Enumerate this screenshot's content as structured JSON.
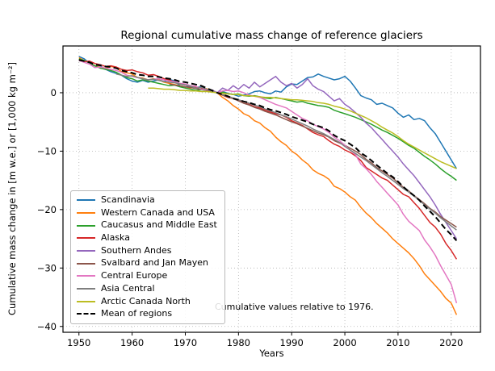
{
  "figure": {
    "background": "#ffffff",
    "frame_color": "#000000",
    "grid_color": "#b0b0b0"
  },
  "chart_data": {
    "type": "line",
    "title": "Regional cumulative mass change of reference glaciers",
    "xlabel": "Years",
    "ylabel": "Cumulative mass change in [m w.e.] or [1,000 kg m⁻²]",
    "annotation": "Cumulative values relative to 1976.",
    "legend_position": "lower-left-inside",
    "grid": true,
    "xlim": [
      1947,
      2025.5
    ],
    "ylim": [
      -41,
      8
    ],
    "x_ticks": [
      1950,
      1960,
      1970,
      1980,
      1990,
      2000,
      2010,
      2020
    ],
    "x_tick_labels": [
      "1950",
      "1960",
      "1970",
      "1980",
      "1990",
      "2000",
      "2010",
      "2020"
    ],
    "y_ticks": [
      0,
      -10,
      -20,
      -30,
      -40
    ],
    "y_tick_labels": [
      "0",
      "−10",
      "−20",
      "−30",
      "−40"
    ],
    "series": [
      {
        "name": "Scandinavia",
        "color": "#1f77b4",
        "dash": false,
        "start_year": 1950,
        "values": [
          6.2,
          5.8,
          5.0,
          4.3,
          4.6,
          4.0,
          3.6,
          3.3,
          3.0,
          2.4,
          2.0,
          1.8,
          2.1,
          1.8,
          2.0,
          2.2,
          1.9,
          2.3,
          2.0,
          1.2,
          1.0,
          1.1,
          0.9,
          1.0,
          0.6,
          0.4,
          0.0,
          0.2,
          -0.1,
          -0.3,
          -0.6,
          -0.4,
          -0.2,
          0.2,
          0.3,
          0.0,
          -0.2,
          0.3,
          0.1,
          1.0,
          1.5,
          1.4,
          2.0,
          2.6,
          2.7,
          3.2,
          2.8,
          2.5,
          2.2,
          2.4,
          2.8,
          2.0,
          0.8,
          -0.5,
          -0.9,
          -1.2,
          -2.0,
          -1.8,
          -2.2,
          -2.6,
          -3.5,
          -4.2,
          -3.8,
          -4.6,
          -4.4,
          -4.8,
          -6.0,
          -7.0,
          -8.5,
          -10.0,
          -11.5,
          -13.0
        ]
      },
      {
        "name": "Western Canada and USA",
        "color": "#ff7f0e",
        "dash": false,
        "start_year": 1950,
        "values": [
          6.0,
          5.5,
          5.2,
          4.6,
          4.4,
          4.2,
          4.5,
          4.3,
          3.6,
          3.4,
          3.2,
          2.6,
          2.5,
          2.2,
          2.4,
          2.2,
          1.8,
          1.6,
          1.4,
          1.2,
          1.0,
          0.8,
          1.0,
          0.6,
          0.7,
          0.3,
          0.0,
          -0.8,
          -1.4,
          -2.2,
          -2.8,
          -3.6,
          -4.0,
          -4.8,
          -5.2,
          -6.0,
          -6.6,
          -7.6,
          -8.4,
          -9.0,
          -10.0,
          -10.6,
          -11.5,
          -12.2,
          -13.2,
          -13.8,
          -14.2,
          -14.8,
          -16.0,
          -16.4,
          -17.0,
          -17.8,
          -18.4,
          -19.6,
          -20.6,
          -21.4,
          -22.4,
          -23.2,
          -24.0,
          -25.0,
          -25.8,
          -26.6,
          -27.4,
          -28.4,
          -29.6,
          -31.0,
          -32.0,
          -33.0,
          -34.0,
          -35.2,
          -36.0,
          -38.0
        ]
      },
      {
        "name": "Caucasus and Middle East",
        "color": "#2ca02c",
        "dash": false,
        "start_year": 1950,
        "values": [
          5.8,
          5.5,
          5.1,
          4.6,
          4.2,
          4.0,
          3.8,
          3.5,
          3.0,
          2.6,
          2.4,
          2.0,
          2.2,
          2.0,
          1.8,
          1.6,
          1.4,
          1.2,
          1.3,
          1.0,
          0.8,
          0.6,
          0.4,
          0.5,
          0.4,
          0.2,
          0.0,
          0.1,
          -0.2,
          -0.3,
          -0.2,
          -0.5,
          -0.6,
          -0.5,
          -0.7,
          -0.9,
          -1.0,
          -0.8,
          -1.0,
          -1.2,
          -1.4,
          -1.6,
          -1.5,
          -1.8,
          -2.0,
          -2.2,
          -2.3,
          -2.5,
          -3.0,
          -3.3,
          -3.6,
          -3.9,
          -4.2,
          -4.6,
          -5.0,
          -5.4,
          -5.9,
          -6.4,
          -6.8,
          -7.3,
          -7.8,
          -8.4,
          -9.0,
          -9.5,
          -10.2,
          -10.9,
          -11.5,
          -12.2,
          -13.0,
          -13.7,
          -14.3,
          -15.0
        ]
      },
      {
        "name": "Alaska",
        "color": "#d62728",
        "dash": false,
        "start_year": 1950,
        "values": [
          5.6,
          5.3,
          5.4,
          5.0,
          4.8,
          4.5,
          4.6,
          4.4,
          4.0,
          3.8,
          3.9,
          3.6,
          3.4,
          3.0,
          3.1,
          2.8,
          2.4,
          2.2,
          1.8,
          1.5,
          1.4,
          1.2,
          1.0,
          0.8,
          0.5,
          0.3,
          0.0,
          -0.4,
          -0.8,
          -1.0,
          -1.3,
          -1.8,
          -2.0,
          -2.4,
          -2.6,
          -3.0,
          -3.3,
          -3.6,
          -3.8,
          -4.2,
          -4.8,
          -5.2,
          -5.6,
          -6.2,
          -6.8,
          -7.2,
          -7.5,
          -8.2,
          -8.8,
          -9.2,
          -9.8,
          -10.2,
          -10.8,
          -11.6,
          -12.8,
          -13.4,
          -14.0,
          -14.6,
          -15.0,
          -15.8,
          -16.6,
          -17.4,
          -17.8,
          -18.8,
          -19.8,
          -21.0,
          -22.2,
          -23.0,
          -24.2,
          -25.8,
          -27.0,
          -28.5
        ]
      },
      {
        "name": "Southern Andes",
        "color": "#9467bd",
        "dash": false,
        "start_year": 1975,
        "values": [
          0.5,
          0.0,
          0.8,
          0.4,
          1.2,
          0.6,
          1.4,
          0.8,
          1.8,
          1.0,
          1.6,
          2.2,
          2.8,
          1.8,
          1.2,
          1.6,
          0.8,
          1.4,
          2.4,
          1.2,
          0.6,
          0.2,
          -0.6,
          -1.4,
          -1.0,
          -2.0,
          -2.6,
          -3.4,
          -4.2,
          -5.2,
          -6.0,
          -7.0,
          -8.0,
          -9.0,
          -10.0,
          -11.0,
          -12.2,
          -13.2,
          -14.2,
          -15.4,
          -16.6,
          -17.8,
          -19.2,
          -20.8,
          -22.2,
          -23.6,
          -25.0
        ]
      },
      {
        "name": "Svalbard and Jan Mayen",
        "color": "#8c564b",
        "dash": false,
        "start_year": 1967,
        "values": [
          1.5,
          1.3,
          1.2,
          1.0,
          0.9,
          0.7,
          0.6,
          0.4,
          0.2,
          0.0,
          -0.4,
          -0.7,
          -1.0,
          -1.4,
          -1.8,
          -2.1,
          -2.5,
          -2.8,
          -3.2,
          -3.5,
          -3.8,
          -4.2,
          -4.6,
          -5.0,
          -5.3,
          -5.7,
          -6.1,
          -6.5,
          -6.9,
          -7.2,
          -7.6,
          -8.2,
          -8.6,
          -9.0,
          -9.5,
          -10.0,
          -10.6,
          -11.4,
          -12.0,
          -12.8,
          -13.4,
          -14.0,
          -14.6,
          -15.4,
          -16.2,
          -16.8,
          -17.6,
          -18.3,
          -19.0,
          -19.8,
          -20.4,
          -21.2,
          -21.8,
          -22.4,
          -23.0
        ]
      },
      {
        "name": "Central Europe",
        "color": "#e377c2",
        "dash": false,
        "start_year": 1950,
        "values": [
          5.5,
          5.2,
          4.9,
          4.3,
          4.4,
          4.2,
          4.0,
          3.8,
          3.5,
          3.0,
          2.8,
          2.6,
          2.4,
          2.2,
          2.3,
          2.4,
          2.2,
          2.0,
          1.9,
          1.6,
          1.5,
          1.2,
          1.1,
          0.6,
          0.5,
          0.4,
          0.0,
          0.3,
          0.4,
          0.2,
          0.3,
          0.0,
          -0.4,
          -0.6,
          -0.8,
          -1.2,
          -1.6,
          -2.0,
          -2.3,
          -2.6,
          -3.2,
          -3.8,
          -4.4,
          -4.8,
          -5.4,
          -5.8,
          -6.2,
          -6.8,
          -7.6,
          -8.2,
          -9.0,
          -9.8,
          -10.6,
          -12.2,
          -13.0,
          -14.0,
          -15.2,
          -16.2,
          -17.2,
          -18.2,
          -19.2,
          -20.8,
          -22.0,
          -22.8,
          -23.6,
          -25.2,
          -26.4,
          -27.8,
          -29.6,
          -31.2,
          -32.8,
          -36.0
        ]
      },
      {
        "name": "Asia Central",
        "color": "#7f7f7f",
        "dash": false,
        "start_year": 1957,
        "values": [
          3.2,
          3.0,
          2.8,
          2.9,
          2.6,
          2.4,
          2.2,
          2.3,
          2.1,
          1.9,
          1.8,
          1.7,
          1.5,
          1.3,
          1.1,
          0.8,
          0.9,
          0.6,
          0.3,
          0.0,
          -0.3,
          -0.6,
          -0.9,
          -1.2,
          -1.5,
          -1.8,
          -2.1,
          -2.4,
          -2.8,
          -3.1,
          -3.4,
          -3.8,
          -4.1,
          -4.5,
          -4.9,
          -5.3,
          -5.7,
          -6.2,
          -6.6,
          -7.0,
          -7.5,
          -8.0,
          -8.5,
          -9.2,
          -9.8,
          -10.4,
          -11.0,
          -11.6,
          -12.3,
          -13.0,
          -13.7,
          -14.3,
          -15.0,
          -15.7,
          -16.4,
          -17.0,
          -17.7,
          -18.4,
          -19.2,
          -19.9,
          -20.6,
          -21.4,
          -22.1,
          -22.8,
          -23.5
        ]
      },
      {
        "name": "Arctic Canada North",
        "color": "#bcbd22",
        "dash": false,
        "start_year": 1963,
        "values": [
          0.8,
          0.8,
          0.7,
          0.6,
          0.6,
          0.5,
          0.4,
          0.4,
          0.3,
          0.3,
          0.2,
          0.2,
          0.1,
          0.0,
          -0.1,
          -0.2,
          -0.3,
          -0.3,
          -0.5,
          -0.5,
          -0.6,
          -0.7,
          -0.8,
          -0.8,
          -0.9,
          -1.0,
          -1.1,
          -1.2,
          -1.2,
          -1.3,
          -1.4,
          -1.5,
          -1.7,
          -1.8,
          -2.0,
          -2.3,
          -2.5,
          -2.8,
          -3.1,
          -3.5,
          -3.9,
          -4.3,
          -4.8,
          -5.3,
          -5.9,
          -6.4,
          -6.9,
          -7.5,
          -8.2,
          -8.8,
          -9.3,
          -9.8,
          -10.3,
          -10.8,
          -11.3,
          -11.8,
          -12.2,
          -12.6,
          -13.0
        ]
      },
      {
        "name": "Mean of regions",
        "color": "#000000",
        "dash": true,
        "start_year": 1950,
        "values": [
          5.6,
          5.4,
          5.2,
          4.8,
          4.7,
          4.5,
          4.4,
          4.2,
          3.8,
          3.6,
          3.4,
          3.1,
          3.0,
          2.8,
          2.8,
          2.7,
          2.5,
          2.4,
          2.2,
          1.9,
          1.8,
          1.6,
          1.4,
          1.2,
          0.8,
          0.4,
          0.0,
          -0.3,
          -0.6,
          -1.0,
          -1.2,
          -1.5,
          -1.7,
          -2.0,
          -2.2,
          -2.6,
          -2.9,
          -3.1,
          -3.4,
          -3.7,
          -4.1,
          -4.4,
          -4.7,
          -5.0,
          -5.4,
          -5.7,
          -6.0,
          -6.5,
          -7.3,
          -7.8,
          -8.2,
          -8.8,
          -9.4,
          -10.3,
          -10.9,
          -11.6,
          -12.4,
          -13.1,
          -13.8,
          -14.4,
          -15.2,
          -16.1,
          -16.9,
          -17.6,
          -18.4,
          -19.4,
          -20.3,
          -21.2,
          -22.3,
          -23.4,
          -24.3,
          -25.3
        ]
      }
    ]
  }
}
